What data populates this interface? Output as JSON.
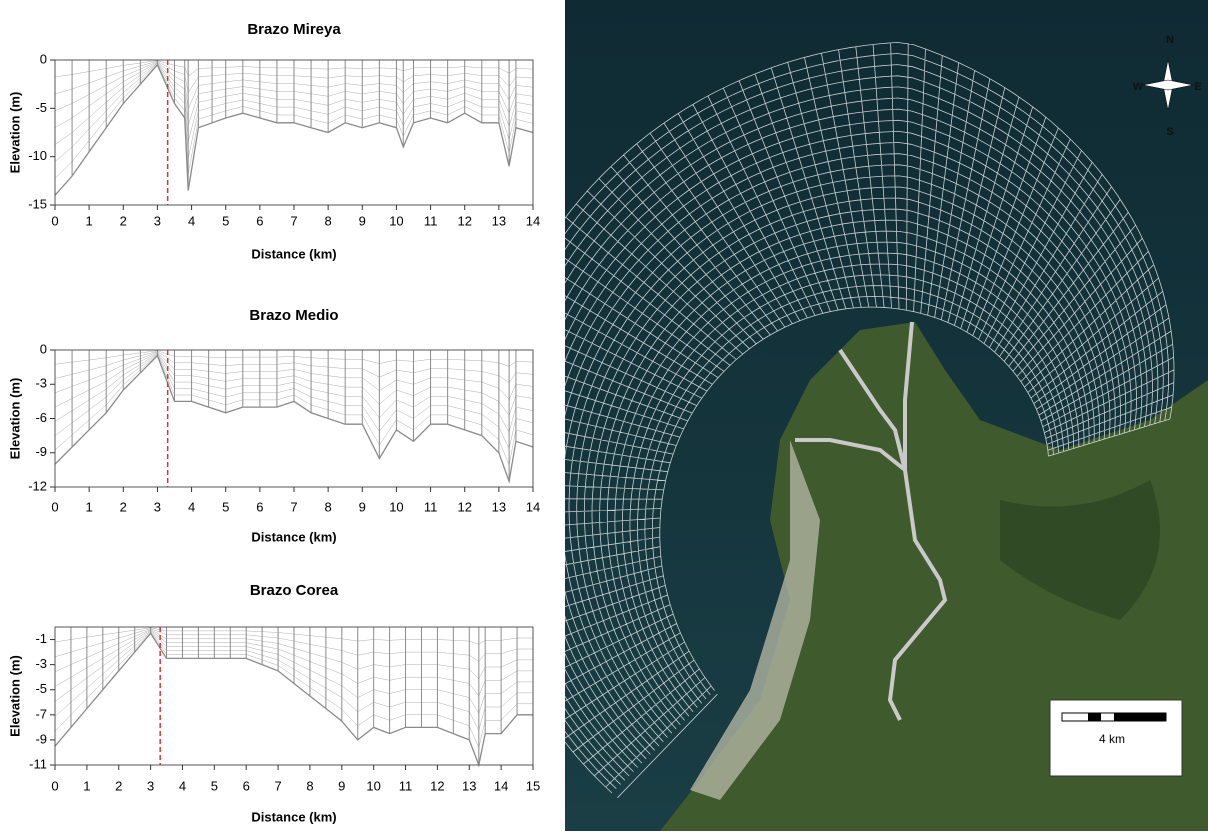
{
  "chart_data": [
    {
      "type": "line",
      "title": "Brazo Mireya",
      "x_label": "Distance (km)",
      "y_label": "Elevation (m)",
      "x": [
        0,
        0.5,
        1,
        1.5,
        2,
        2.5,
        3,
        3.5,
        3.8,
        3.9,
        4.2,
        4.6,
        5,
        5.5,
        6,
        6.5,
        7,
        7.5,
        8,
        8.5,
        9,
        9.5,
        10,
        10.2,
        10.5,
        11,
        11.5,
        12,
        12.5,
        13,
        13.3,
        13.5,
        14
      ],
      "values": [
        -14,
        -12,
        -9.5,
        -7,
        -4.5,
        -2.5,
        -0.5,
        -4.5,
        -6,
        -13.5,
        -7,
        -6.5,
        -6,
        -5.5,
        -6,
        -6.5,
        -6.5,
        -7,
        -7.5,
        -6.5,
        -7,
        -6.5,
        -7,
        -9,
        -6.5,
        -6,
        -6.5,
        -5.5,
        -6.5,
        -6.5,
        -11,
        -7,
        -7.5
      ],
      "color": "#8a8a8a",
      "xlim": [
        0,
        14
      ],
      "xticks": [
        0,
        1,
        2,
        3,
        4,
        5,
        6,
        7,
        8,
        9,
        10,
        11,
        12,
        13,
        14
      ],
      "ylim": [
        -15,
        0
      ],
      "yticks": [
        0,
        -5,
        -10,
        -15
      ],
      "marker_x": 3.3,
      "marker_color": "#e03030"
    },
    {
      "type": "line",
      "title": "Brazo Medio",
      "x_label": "Distance (km)",
      "y_label": "Elevation (m)",
      "x": [
        0,
        0.5,
        1,
        1.5,
        2,
        2.5,
        3,
        3.5,
        4,
        4.5,
        5,
        5.5,
        6,
        6.5,
        7,
        7.5,
        8,
        8.5,
        9,
        9.5,
        10,
        10.5,
        11,
        11.5,
        12,
        12.5,
        13,
        13.3,
        13.5,
        14
      ],
      "values": [
        -10,
        -8.5,
        -7,
        -5.5,
        -3.5,
        -2,
        -0.5,
        -4.5,
        -4.5,
        -5,
        -5.5,
        -5,
        -5,
        -5,
        -4.5,
        -5.5,
        -6,
        -6.5,
        -6.5,
        -9.5,
        -7,
        -8,
        -6.5,
        -6.5,
        -7,
        -7.5,
        -9,
        -11.5,
        -8,
        -8.5
      ],
      "color": "#8a8a8a",
      "xlim": [
        0,
        14
      ],
      "xticks": [
        0,
        1,
        2,
        3,
        4,
        5,
        6,
        7,
        8,
        9,
        10,
        11,
        12,
        13,
        14
      ],
      "ylim": [
        -12,
        0
      ],
      "yticks": [
        0,
        -3,
        -6,
        -9,
        -12
      ],
      "marker_x": 3.3,
      "marker_color": "#e03030"
    },
    {
      "type": "line",
      "title": "Brazo Corea",
      "x_label": "Distance (km)",
      "y_label": "Elevation (m)",
      "x": [
        0,
        0.5,
        1,
        1.5,
        2,
        2.5,
        3,
        3.5,
        4,
        4.5,
        5,
        5.5,
        6,
        6.5,
        7,
        7.5,
        8,
        8.5,
        9,
        9.5,
        10,
        10.5,
        11,
        11.5,
        12,
        12.5,
        13,
        13.3,
        13.5,
        14,
        14.5,
        15
      ],
      "values": [
        -9.5,
        -8,
        -6.5,
        -5,
        -3.5,
        -2,
        -0.5,
        -2.5,
        -2.5,
        -2.5,
        -2.5,
        -2.5,
        -2.5,
        -3,
        -3.5,
        -4.5,
        -5.5,
        -6.5,
        -7.5,
        -9,
        -8,
        -8.5,
        -8,
        -8,
        -8,
        -8.5,
        -9,
        -11,
        -8.5,
        -8.5,
        -7,
        -7
      ],
      "color": "#8a8a8a",
      "xlim": [
        0,
        15
      ],
      "xticks": [
        0,
        1,
        2,
        3,
        4,
        5,
        6,
        7,
        8,
        9,
        10,
        11,
        12,
        13,
        14,
        15
      ],
      "ylim": [
        -11,
        0
      ],
      "yticks": [
        -1,
        -3,
        -5,
        -7,
        -9,
        -11
      ],
      "marker_x": 3.3,
      "marker_color": "#e03030"
    }
  ],
  "map": {
    "compass": {
      "north": "N",
      "south": "S",
      "east": "E",
      "west": "W"
    },
    "scale_bar": "4 km"
  }
}
